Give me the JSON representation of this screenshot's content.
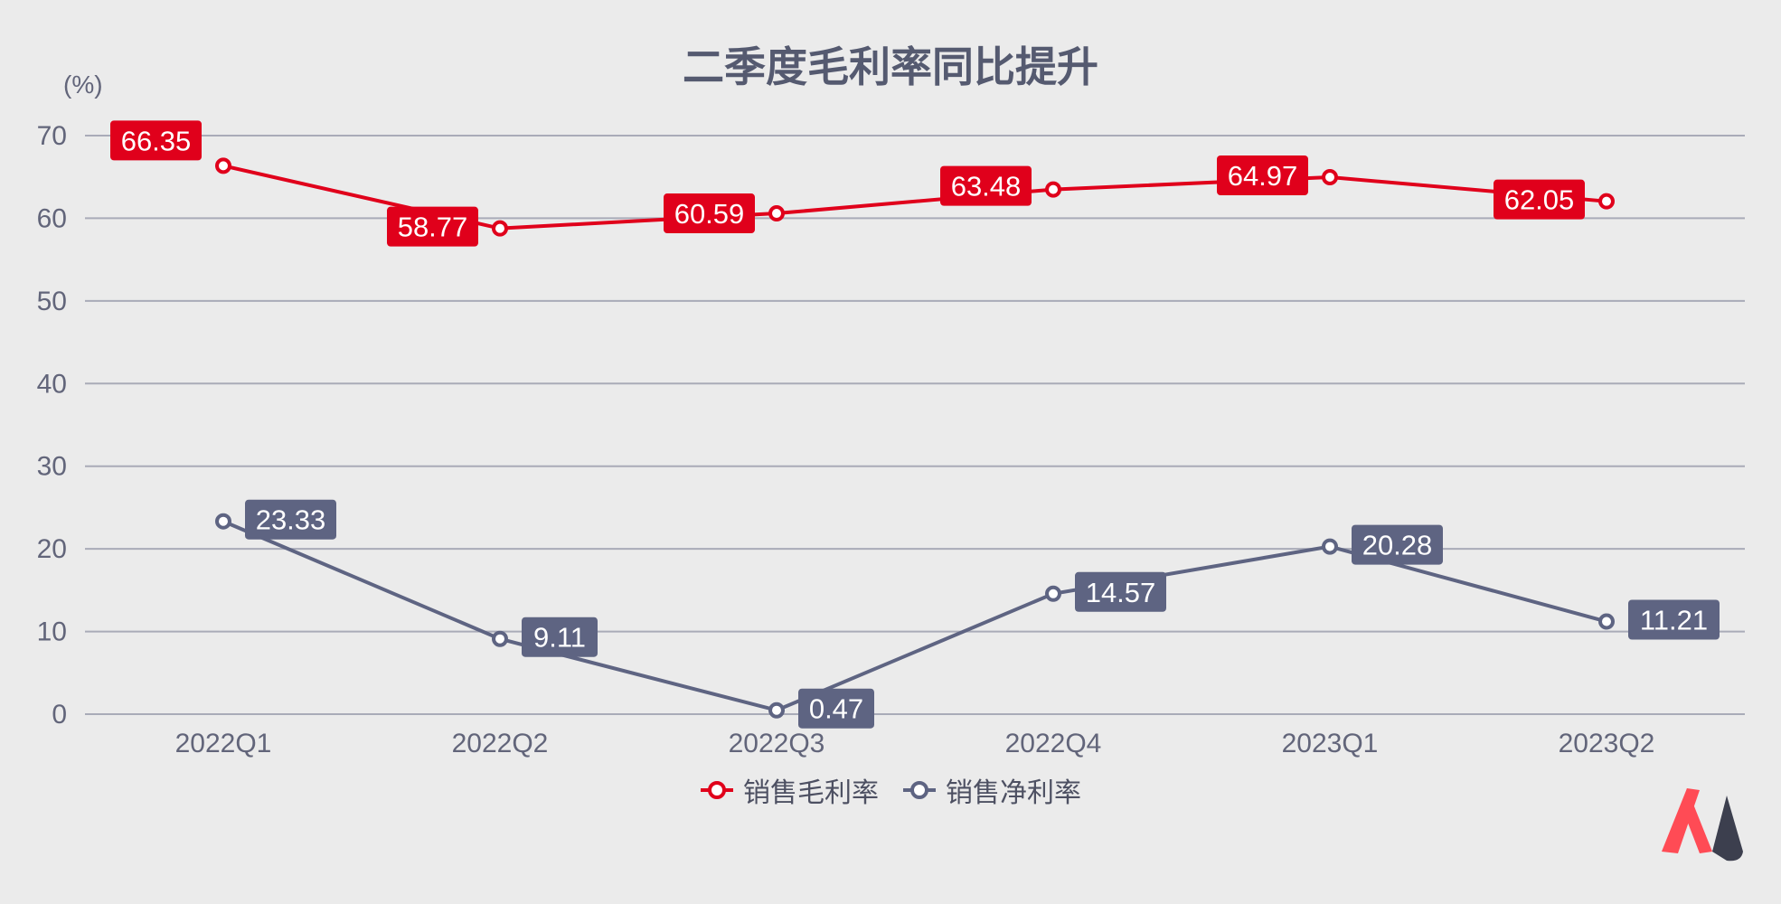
{
  "chart_data": {
    "type": "line",
    "title": "二季度毛利率同比提升",
    "unit_label": "(%)",
    "categories": [
      "2022Q1",
      "2022Q2",
      "2022Q3",
      "2022Q4",
      "2023Q1",
      "2023Q2"
    ],
    "ylim": [
      0,
      70
    ],
    "yticks": [
      0,
      10,
      20,
      30,
      40,
      50,
      60,
      70
    ],
    "grid": true,
    "legend_position": "bottom",
    "series": [
      {
        "name": "销售毛利率",
        "color": "#e0001b",
        "values": [
          66.35,
          58.77,
          60.59,
          63.48,
          64.97,
          62.05
        ],
        "labels": [
          "66.35",
          "58.77",
          "60.59",
          "63.48",
          "64.97",
          "62.05"
        ]
      },
      {
        "name": "销售净利率",
        "color": "#5e6482",
        "values": [
          23.33,
          9.11,
          0.47,
          14.57,
          20.28,
          11.21
        ],
        "labels": [
          "23.33",
          "9.11",
          "0.47",
          "14.57",
          "20.28",
          "11.21"
        ]
      }
    ]
  },
  "logo": {
    "icon": "brand-logo-icon",
    "colors": [
      "#ff4b55",
      "#3c3f4e"
    ]
  }
}
